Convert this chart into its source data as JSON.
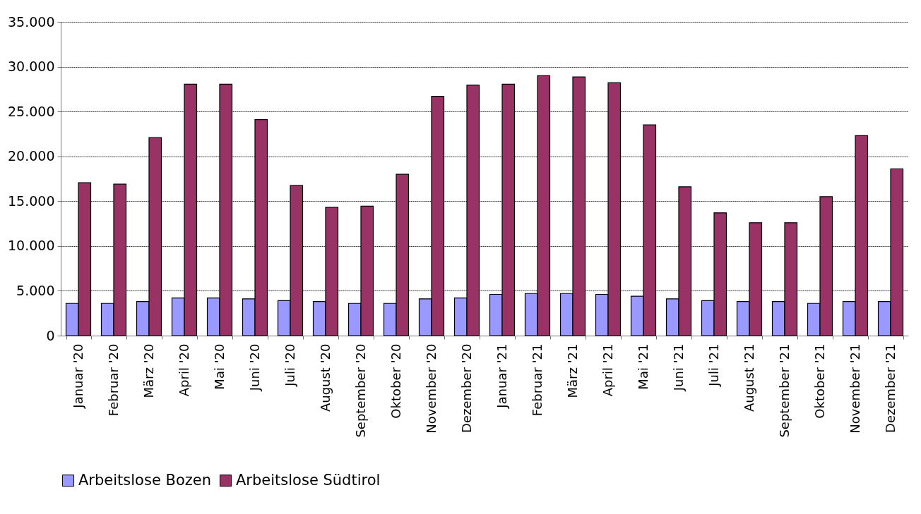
{
  "chart_data": {
    "type": "bar",
    "categories": [
      "Januar '20",
      "Februar '20",
      "März '20",
      "April '20",
      "Mai '20",
      "Juni '20",
      "Juli '20",
      "August '20",
      "September '20",
      "Oktober '20",
      "November '20",
      "Dezember '20",
      "Januar '21",
      "Februar '21",
      "März '21",
      "April '21",
      "Mai '21",
      "Juni '21",
      "Juli '21",
      "August '21",
      "September '21",
      "Oktober '21",
      "November '21",
      "Dezember '21"
    ],
    "series": [
      {
        "name": "Arbeitslose Bozen",
        "color": "#9999ff",
        "values": [
          3600,
          3600,
          3800,
          4200,
          4200,
          4100,
          3900,
          3800,
          3600,
          3600,
          4100,
          4200,
          4600,
          4700,
          4700,
          4600,
          4400,
          4100,
          3900,
          3800,
          3800,
          3600,
          3800,
          3800
        ]
      },
      {
        "name": "Arbeitslose Südtirol",
        "color": "#993366",
        "values": [
          17050,
          16900,
          22100,
          28050,
          28050,
          24100,
          16750,
          14300,
          14450,
          18000,
          26700,
          27950,
          28050,
          29000,
          28850,
          28200,
          23500,
          16600,
          13700,
          12600,
          12600,
          15500,
          22300,
          18600
        ]
      }
    ],
    "ylim": [
      0,
      35000
    ],
    "yticks": [
      0,
      {
        "value": 5000,
        "label": "5.000"
      },
      {
        "value": 10000,
        "label": "10.000"
      },
      {
        "value": 15000,
        "label": "15.000"
      },
      {
        "value": 20000,
        "label": "20.000"
      },
      {
        "value": 25000,
        "label": "25.000"
      },
      {
        "value": 30000,
        "label": "30.000"
      },
      {
        "value": 35000,
        "label": "35.000"
      }
    ],
    "grid": "y",
    "legend": "bottom"
  }
}
